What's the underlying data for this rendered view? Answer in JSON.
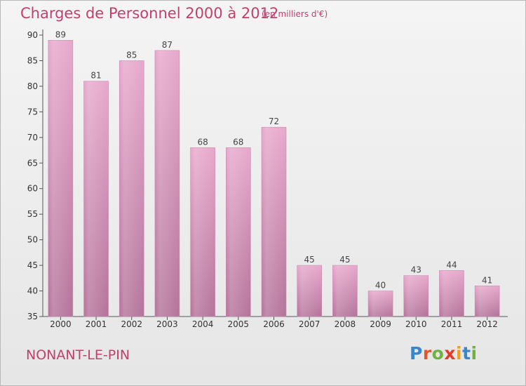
{
  "title": "Charges de Personnel 2000 à 2012",
  "subtitle": "(en milliers d'€)",
  "commune": "NONANT-LE-PIN",
  "logo": {
    "text": "Proxiti",
    "letters": [
      "P",
      "r",
      "o",
      "x",
      "i",
      "t",
      "i"
    ],
    "colors": [
      "#3a86c8",
      "#e5542a",
      "#6cb33f",
      "#e53a2a",
      "#f0a020",
      "#3a86c8",
      "#6cb33f"
    ]
  },
  "colors": {
    "bar": "#d38eb4",
    "bar_light": "#e9a8cc",
    "bar_dark": "#b56c94",
    "title": "#c0406e"
  },
  "chart_data": {
    "type": "bar",
    "categories": [
      "2000",
      "2001",
      "2002",
      "2003",
      "2004",
      "2005",
      "2006",
      "2007",
      "2008",
      "2009",
      "2010",
      "2011",
      "2012"
    ],
    "values": [
      89,
      81,
      85,
      87,
      68,
      68,
      72,
      45,
      45,
      40,
      43,
      44,
      41
    ],
    "title": "Charges de Personnel 2000 à 2012",
    "ylim": [
      35,
      90
    ],
    "yticks": [
      35,
      40,
      45,
      50,
      55,
      60,
      65,
      70,
      75,
      80,
      85,
      90
    ],
    "grid": false
  }
}
